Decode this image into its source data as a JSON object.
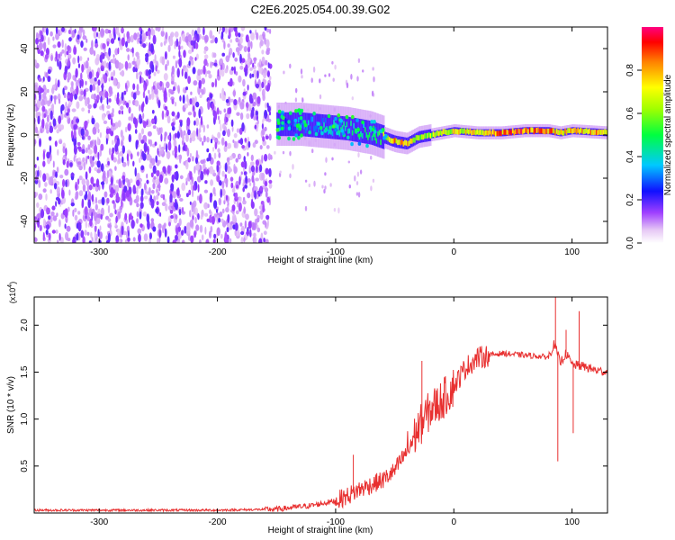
{
  "title": "C2E6.2025.054.00.39.G02",
  "chart_data": [
    {
      "type": "heatmap",
      "xlabel": "Height of straight line (km)",
      "ylabel": "Frequency (Hz)",
      "xlim": [
        -355,
        130
      ],
      "ylim": [
        -50,
        50
      ],
      "x_ticks": [
        -300,
        -200,
        -100,
        0,
        100
      ],
      "y_ticks": [
        -40,
        -20,
        0,
        20,
        40
      ],
      "colorbar": {
        "label": "Normalized spectral amplitude",
        "range": [
          0,
          1
        ],
        "ticks": [
          0.0,
          0.2,
          0.4,
          0.6,
          0.8
        ]
      },
      "signal_ridge": {
        "x": [
          -150,
          -130,
          -110,
          -90,
          -70,
          -50,
          -40,
          -30,
          -20,
          0,
          20,
          40,
          60,
          80,
          90,
          100,
          130
        ],
        "frequency": [
          5,
          5,
          4,
          3,
          1,
          -3,
          -4,
          -1,
          0,
          2,
          1,
          1,
          2,
          2,
          1,
          2,
          1
        ],
        "amplitude": [
          0.3,
          0.35,
          0.4,
          0.45,
          0.5,
          0.85,
          0.9,
          0.6,
          0.7,
          0.75,
          0.8,
          0.9,
          0.95,
          0.9,
          0.8,
          0.85,
          0.85
        ]
      },
      "noise_region_x": [
        -355,
        -155
      ]
    },
    {
      "type": "line",
      "xlabel": "Height of straight line (km)",
      "ylabel": "SNR (10 * v/v)",
      "y_multiplier": "(x10",
      "y_exponent": "4",
      "xlim": [
        -355,
        130
      ],
      "ylim": [
        0,
        2.3
      ],
      "x_ticks": [
        -300,
        -200,
        -100,
        0,
        100
      ],
      "y_ticks": [
        0.5,
        1.0,
        1.5,
        2.0
      ],
      "line_color": "#e83030",
      "series": [
        {
          "x": [
            -355,
            -300,
            -250,
            -200,
            -150,
            -120,
            -100,
            -90,
            -80,
            -70,
            -60,
            -50,
            -40,
            -30,
            -20,
            -10,
            0,
            10,
            20,
            30,
            40,
            50,
            60,
            70,
            80,
            85,
            90,
            95,
            100,
            110,
            120,
            130
          ],
          "values": [
            0.03,
            0.03,
            0.03,
            0.03,
            0.04,
            0.08,
            0.13,
            0.18,
            0.25,
            0.3,
            0.35,
            0.45,
            0.65,
            0.9,
            1.1,
            1.2,
            1.35,
            1.55,
            1.65,
            1.68,
            1.7,
            1.69,
            1.68,
            1.67,
            1.66,
            1.8,
            1.6,
            1.7,
            1.58,
            1.56,
            1.52,
            1.5
          ]
        }
      ],
      "spikes": [
        {
          "x": -85,
          "y": 0.62
        },
        {
          "x": -27,
          "y": 1.62
        },
        {
          "x": 86,
          "y": 2.3
        },
        {
          "x": 88,
          "y": 0.55
        },
        {
          "x": 95,
          "y": 1.95
        },
        {
          "x": 101,
          "y": 0.85
        },
        {
          "x": 106,
          "y": 2.15
        }
      ]
    }
  ]
}
